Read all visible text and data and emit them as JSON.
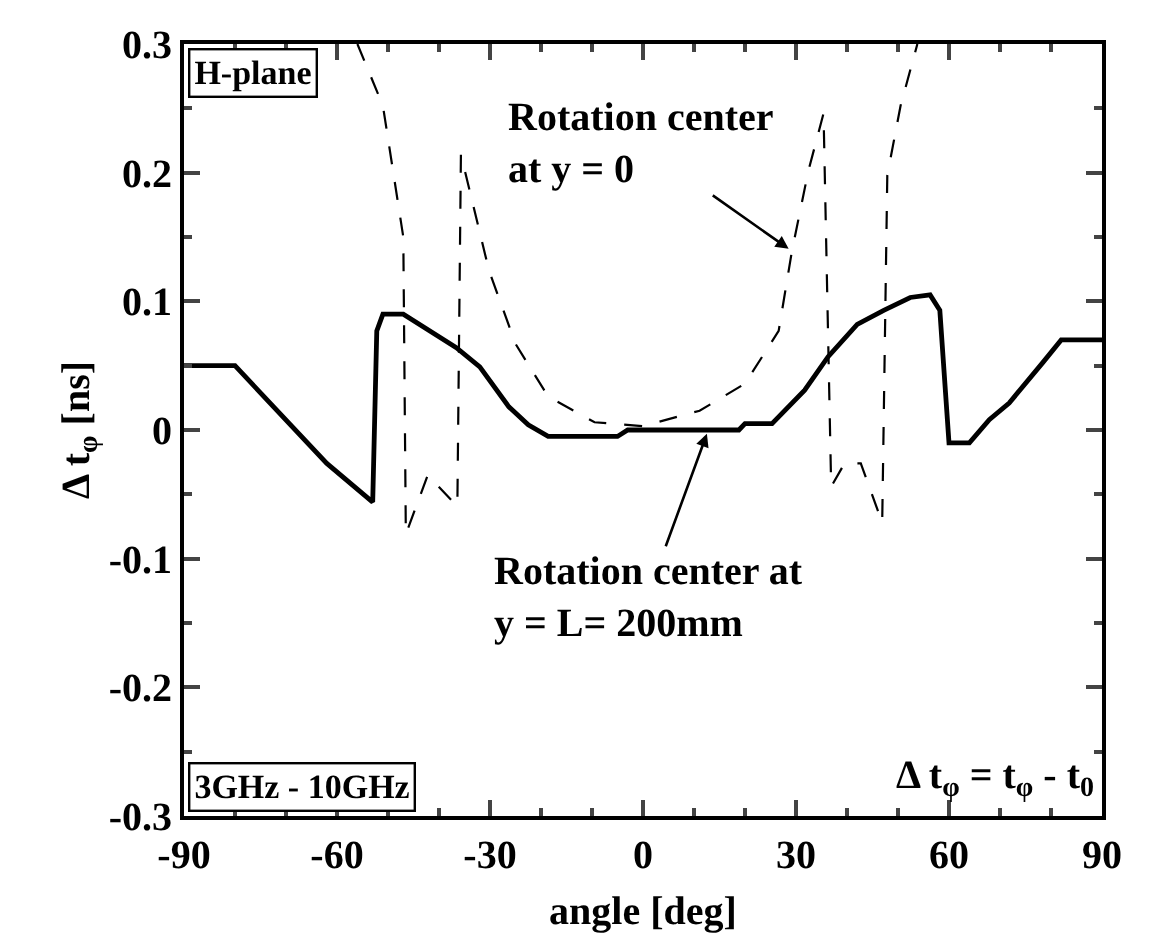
{
  "chart_data": {
    "type": "line",
    "xlabel": "angle [deg]",
    "ylabel": "Δ t$_{φ}$ [ns]",
    "xlim": [
      -90,
      90
    ],
    "xticks": [
      -90,
      -60,
      -30,
      0,
      30,
      60,
      90
    ],
    "ylim": [
      -0.3,
      0.3
    ],
    "yticks": [
      -0.3,
      -0.2,
      -0.1,
      0,
      0.1,
      0.2,
      0.3
    ],
    "marker": "none",
    "series": [
      {
        "color": "#000000",
        "line_style": "solid",
        "x": [
          -90,
          -80,
          -62,
          -53,
          -52.2,
          -51,
          -47,
          -36.6,
          -32,
          -26.3,
          -22.5,
          -18.6,
          -5,
          -3,
          18.8,
          20,
          25.3,
          31.7,
          36.3,
          42,
          47.2,
          52.4,
          56.3,
          58.2,
          60,
          64,
          67.9,
          71.8,
          78.3,
          82,
          90
        ],
        "values": [
          0.05,
          0.05,
          -0.026,
          -0.056,
          0.077,
          0.09,
          0.09,
          0.064,
          0.049,
          0.018,
          0.004,
          -0.005,
          -0.005,
          0,
          0,
          0.005,
          0.005,
          0.031,
          0.057,
          0.082,
          0.093,
          0.103,
          0.105,
          0.093,
          -0.01,
          -0.01,
          0.008,
          0.021,
          0.052,
          0.07,
          0.07
        ]
      },
      {
        "color": "#000000",
        "line_style": "dashed",
        "x": [
          -56,
          -51,
          -47,
          -46.5,
          -42.2,
          -37,
          -36.4,
          -35.7,
          -30.2,
          -25,
          -18.6,
          -9.5,
          0,
          11.1,
          20,
          26.6,
          29.2,
          32.4,
          35.4,
          36.9,
          39.5,
          42.7,
          46.9,
          47.9,
          50.5,
          53.8
        ],
        "values": [
          0.3,
          0.252,
          0.15,
          -0.081,
          -0.035,
          -0.057,
          -0.059,
          0.214,
          0.124,
          0.067,
          0.026,
          0.006,
          0.003,
          0.015,
          0.036,
          0.077,
          0.139,
          0.201,
          0.246,
          -0.044,
          -0.026,
          -0.026,
          -0.072,
          0.198,
          0.252,
          0.3
        ]
      }
    ],
    "annotations": [
      "H-plane",
      "3GHz - 10GHz",
      "Δ t$_{φ}$ = t$_{φ}$ - t$_{0}$",
      {
        "text": "Rotation center\nat y = 0",
        "x": 29.2,
        "y": 0.139
      },
      {
        "text": "Rotation center at\ny = L= 200mm",
        "x": 12.8,
        "y": 0
      }
    ]
  }
}
